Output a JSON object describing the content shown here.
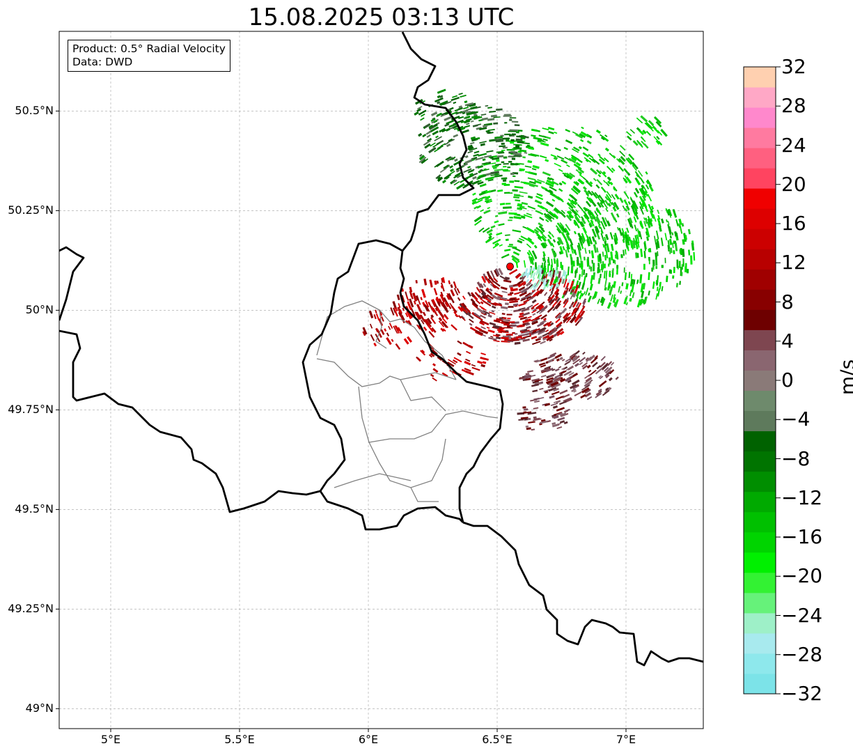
{
  "title": "15.08.2025 03:13 UTC",
  "info": {
    "product": "Product: 0.5° Radial Velocity",
    "data_source": "Data: DWD"
  },
  "map": {
    "lon_range": [
      4.8,
      7.3
    ],
    "lat_range": [
      48.95,
      50.7
    ],
    "x_ticks": [
      {
        "value": 5.0,
        "label": "5°E"
      },
      {
        "value": 5.5,
        "label": "5.5°E"
      },
      {
        "value": 6.0,
        "label": "6°E"
      },
      {
        "value": 6.5,
        "label": "6.5°E"
      },
      {
        "value": 7.0,
        "label": "7°E"
      }
    ],
    "y_ticks": [
      {
        "value": 49.0,
        "label": "49°N"
      },
      {
        "value": 49.25,
        "label": "49.25°N"
      },
      {
        "value": 49.5,
        "label": "49.5°N"
      },
      {
        "value": 49.75,
        "label": "49.75°N"
      },
      {
        "value": 50.0,
        "label": "50°N"
      },
      {
        "value": 50.25,
        "label": "50.25°N"
      },
      {
        "value": 50.5,
        "label": "50.5°N"
      }
    ],
    "grid": true,
    "radar_site": {
      "lon": 6.55,
      "lat": 50.11,
      "color": "#ff0000"
    }
  },
  "colorbar": {
    "unit": "m/s",
    "min": -32,
    "max": 32,
    "tick_labels": [
      {
        "value": 32,
        "label": "32"
      },
      {
        "value": 28,
        "label": "28"
      },
      {
        "value": 24,
        "label": "24"
      },
      {
        "value": 20,
        "label": "20"
      },
      {
        "value": 16,
        "label": "16"
      },
      {
        "value": 12,
        "label": "12"
      },
      {
        "value": 8,
        "label": "8"
      },
      {
        "value": 4,
        "label": "4"
      },
      {
        "value": 0,
        "label": "0"
      },
      {
        "value": -4,
        "label": "−4"
      },
      {
        "value": -8,
        "label": "−8"
      },
      {
        "value": -12,
        "label": "−12"
      },
      {
        "value": -16,
        "label": "−16"
      },
      {
        "value": -20,
        "label": "−20"
      },
      {
        "value": -24,
        "label": "−24"
      },
      {
        "value": -28,
        "label": "−28"
      },
      {
        "value": -32,
        "label": "−32"
      }
    ],
    "colors_bottom_to_top": [
      "#7ce3e8",
      "#8ee8ec",
      "#a8eaee",
      "#9ef0c8",
      "#66f27a",
      "#33f233",
      "#00f000",
      "#00d400",
      "#00c000",
      "#00aa00",
      "#008e00",
      "#007400",
      "#006200",
      "#5e7a5c",
      "#6e8a6c",
      "#8a7a78",
      "#8a6670",
      "#7e4650",
      "#6e0000",
      "#880000",
      "#a00000",
      "#b80000",
      "#cc0000",
      "#dd0000",
      "#f00000",
      "#ff4460",
      "#ff6080",
      "#ff7aa0",
      "#ff88cc",
      "#ffa8c6",
      "#ffd0b0"
    ]
  }
}
